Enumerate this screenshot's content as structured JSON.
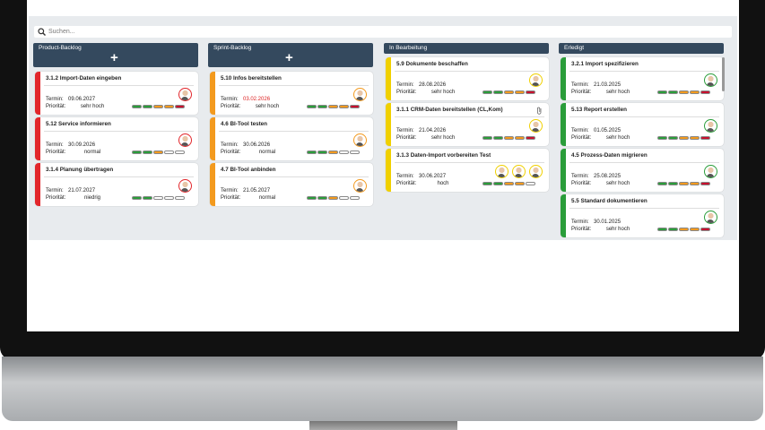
{
  "search_placeholder": "Suchen...",
  "labels": {
    "termin": "Termin:",
    "prioritaet": "Priorität:"
  },
  "columns": [
    {
      "title": "Product-Backlog",
      "add_label": "+",
      "color": "#e2262b",
      "cards": [
        {
          "title": "3.1.2 Import-Daten eingeben",
          "termin": "09.06.2027",
          "prioritaet": "sehr hoch"
        },
        {
          "title": "5.12 Service informieren",
          "termin": "30.09.2026",
          "prioritaet": "normal"
        },
        {
          "title": "3.1.4 Planung übertragen",
          "termin": "21.07.2027",
          "prioritaet": "niedrig"
        }
      ]
    },
    {
      "title": "Sprint-Backlog",
      "add_label": "+",
      "color": "#f39a1e",
      "cards": [
        {
          "title": "5.10 Infos bereitstellen",
          "termin": "03.02.2026",
          "prioritaet": "sehr hoch",
          "overdue": true
        },
        {
          "title": "4.6 BI-Tool testen",
          "termin": "30.06.2026",
          "prioritaet": "normal"
        },
        {
          "title": "4.7 BI-Tool anbinden",
          "termin": "21.05.2027",
          "prioritaet": "normal"
        }
      ]
    },
    {
      "title": "In Bearbeitung",
      "color": "#f0d000",
      "cards": [
        {
          "title": "5.9 Dokumente beschaffen",
          "termin": "28.08.2026",
          "prioritaet": "sehr hoch"
        },
        {
          "title": "3.1.1 CRM-Daten bereitstellen (CL,Kom)",
          "termin": "21.04.2026",
          "prioritaet": "sehr hoch"
        },
        {
          "title": "3.1.3 Daten-Import vorbereiten Test",
          "termin": "30.06.2027",
          "prioritaet": "hoch"
        }
      ]
    },
    {
      "title": "Erledigt",
      "color": "#2a9d3a",
      "cards": [
        {
          "title": "3.2.1 Import spezifizieren",
          "termin": "21.03.2025",
          "prioritaet": "sehr hoch"
        },
        {
          "title": "5.13 Report erstellen",
          "termin": "01.05.2025",
          "prioritaet": "sehr hoch"
        },
        {
          "title": "4.5 Prozess-Daten migrieren",
          "termin": "25.08.2025",
          "prioritaet": "sehr hoch"
        },
        {
          "title": "5.5 Standard dokumentieren",
          "termin": "30.01.2025",
          "prioritaet": "sehr hoch"
        }
      ]
    }
  ]
}
